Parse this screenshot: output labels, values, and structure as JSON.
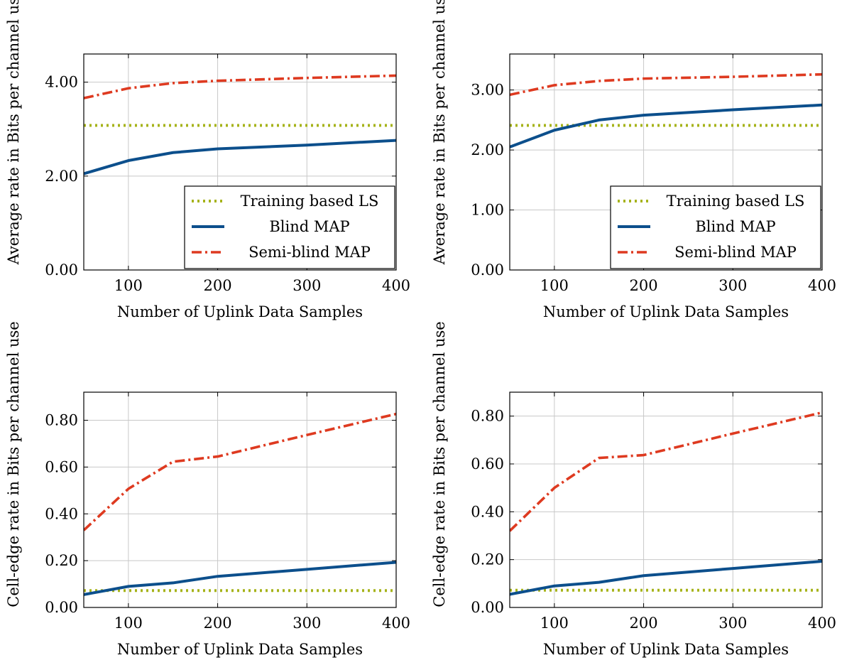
{
  "colors": {
    "training": "#a6b31a",
    "blind": "#0c4f8c",
    "semi": "#de3a20"
  },
  "chart_data": [
    {
      "type": "line",
      "xlabel": "Number of Uplink Data Samples",
      "ylabel": "Average rate in Bits per channel use",
      "xlim": [
        50,
        400
      ],
      "ylim": [
        0,
        4.6
      ],
      "xticks": [
        100,
        200,
        300,
        400
      ],
      "xtick_labels": [
        "100",
        "200",
        "300",
        "400"
      ],
      "yticks": [
        0,
        2,
        4
      ],
      "ytick_labels": [
        "0.00",
        "2.00",
        "4.00"
      ],
      "grid": true,
      "legend_position": "bottom-right",
      "series": [
        {
          "name": "Training based LS",
          "style": "dotted",
          "x": [
            50,
            400
          ],
          "y": [
            3.08,
            3.08
          ]
        },
        {
          "name": "Blind MAP",
          "style": "solid",
          "x": [
            50,
            100,
            150,
            200,
            300,
            400
          ],
          "y": [
            2.05,
            2.33,
            2.5,
            2.58,
            2.66,
            2.76
          ]
        },
        {
          "name": "Semi-blind MAP",
          "style": "dashdot",
          "x": [
            50,
            100,
            150,
            200,
            300,
            400
          ],
          "y": [
            3.66,
            3.87,
            3.98,
            4.03,
            4.09,
            4.14
          ]
        }
      ]
    },
    {
      "type": "line",
      "xlabel": "Number of Uplink Data Samples",
      "ylabel": "Average rate in Bits per channel use",
      "xlim": [
        50,
        400
      ],
      "ylim": [
        0,
        3.6
      ],
      "xticks": [
        100,
        200,
        300,
        400
      ],
      "xtick_labels": [
        "100",
        "200",
        "300",
        "400"
      ],
      "yticks": [
        0,
        1,
        2,
        3
      ],
      "ytick_labels": [
        "0.00",
        "1.00",
        "2.00",
        "3.00"
      ],
      "grid": true,
      "legend_position": "bottom-right",
      "series": [
        {
          "name": "Training based LS",
          "style": "dotted",
          "x": [
            50,
            400
          ],
          "y": [
            2.41,
            2.41
          ]
        },
        {
          "name": "Blind MAP",
          "style": "solid",
          "x": [
            50,
            100,
            150,
            200,
            300,
            400
          ],
          "y": [
            2.05,
            2.33,
            2.5,
            2.58,
            2.67,
            2.75
          ]
        },
        {
          "name": "Semi-blind MAP",
          "style": "dashdot",
          "x": [
            50,
            100,
            150,
            200,
            300,
            400
          ],
          "y": [
            2.92,
            3.08,
            3.15,
            3.19,
            3.22,
            3.26
          ]
        }
      ]
    },
    {
      "type": "line",
      "xlabel": "Number of Uplink Data Samples",
      "ylabel": "Cell-edge rate in Bits per channel use",
      "xlim": [
        50,
        400
      ],
      "ylim": [
        0,
        0.92
      ],
      "xticks": [
        100,
        200,
        300,
        400
      ],
      "xtick_labels": [
        "100",
        "200",
        "300",
        "400"
      ],
      "yticks": [
        0,
        0.2,
        0.4,
        0.6,
        0.8
      ],
      "ytick_labels": [
        "0.00",
        "0.20",
        "0.40",
        "0.60",
        "0.80"
      ],
      "grid": true,
      "legend_position": "none",
      "series": [
        {
          "name": "Training based LS",
          "style": "dotted",
          "x": [
            50,
            400
          ],
          "y": [
            0.072,
            0.072
          ]
        },
        {
          "name": "Blind MAP",
          "style": "solid",
          "x": [
            50,
            100,
            150,
            200,
            300,
            400
          ],
          "y": [
            0.055,
            0.09,
            0.105,
            0.133,
            0.163,
            0.193
          ]
        },
        {
          "name": "Semi-blind MAP",
          "style": "dashdot",
          "x": [
            50,
            100,
            150,
            200,
            300,
            400
          ],
          "y": [
            0.33,
            0.507,
            0.623,
            0.645,
            0.737,
            0.827
          ]
        }
      ]
    },
    {
      "type": "line",
      "xlabel": "Number of Uplink Data Samples",
      "ylabel": "Cell-edge rate in Bits per channel use",
      "xlim": [
        50,
        400
      ],
      "ylim": [
        0,
        0.9
      ],
      "xticks": [
        100,
        200,
        300,
        400
      ],
      "xtick_labels": [
        "100",
        "200",
        "300",
        "400"
      ],
      "yticks": [
        0,
        0.2,
        0.4,
        0.6,
        0.8
      ],
      "ytick_labels": [
        "0.00",
        "0.20",
        "0.40",
        "0.60",
        "0.80"
      ],
      "grid": true,
      "legend_position": "none",
      "series": [
        {
          "name": "Training based LS",
          "style": "dotted",
          "x": [
            50,
            400
          ],
          "y": [
            0.072,
            0.072
          ]
        },
        {
          "name": "Blind MAP",
          "style": "solid",
          "x": [
            50,
            100,
            150,
            200,
            300,
            400
          ],
          "y": [
            0.055,
            0.09,
            0.105,
            0.133,
            0.163,
            0.193
          ]
        },
        {
          "name": "Semi-blind MAP",
          "style": "dashdot",
          "x": [
            50,
            100,
            150,
            200,
            300,
            400
          ],
          "y": [
            0.32,
            0.5,
            0.625,
            0.637,
            0.727,
            0.815
          ]
        }
      ]
    }
  ]
}
